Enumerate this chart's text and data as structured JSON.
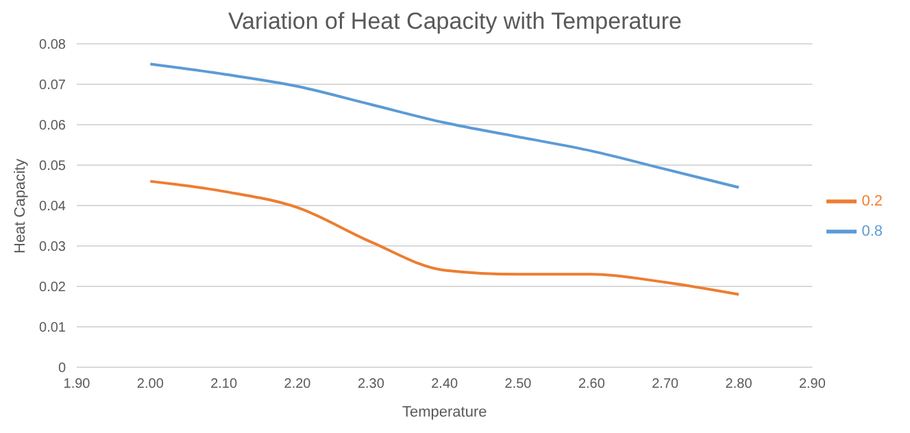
{
  "chart_data": {
    "type": "line",
    "title": "Variation of Heat Capacity with Temperature",
    "xlabel": "Temperature",
    "ylabel": "Heat Capacity",
    "x": [
      2.0,
      2.1,
      2.2,
      2.3,
      2.4,
      2.5,
      2.6,
      2.7,
      2.8
    ],
    "series": [
      {
        "name": "0.8",
        "color": "#5b9bd5",
        "values": [
          0.075,
          0.0725,
          0.0695,
          0.065,
          0.0605,
          0.057,
          0.0535,
          0.049,
          0.0445
        ]
      },
      {
        "name": "0.2",
        "color": "#ed7d31",
        "values": [
          0.046,
          0.0435,
          0.0395,
          0.031,
          0.024,
          0.023,
          0.023,
          0.021,
          0.018
        ]
      }
    ],
    "xlim": [
      1.9,
      2.9
    ],
    "xticks": [
      {
        "value": 1.9,
        "label": "1.90"
      },
      {
        "value": 2.0,
        "label": "2.00"
      },
      {
        "value": 2.1,
        "label": "2.10"
      },
      {
        "value": 2.2,
        "label": "2.20"
      },
      {
        "value": 2.3,
        "label": "2.30"
      },
      {
        "value": 2.4,
        "label": "2.40"
      },
      {
        "value": 2.5,
        "label": "2.50"
      },
      {
        "value": 2.6,
        "label": "2.60"
      },
      {
        "value": 2.7,
        "label": "2.70"
      },
      {
        "value": 2.8,
        "label": "2.80"
      },
      {
        "value": 2.9,
        "label": "2.90"
      }
    ],
    "ylim": [
      0,
      0.08
    ],
    "yticks": [
      0,
      0.01,
      0.02,
      0.03,
      0.04,
      0.05,
      0.06,
      0.07,
      0.08
    ],
    "grid": "y",
    "legend": "right",
    "marker": "none",
    "line_style": "solid"
  }
}
